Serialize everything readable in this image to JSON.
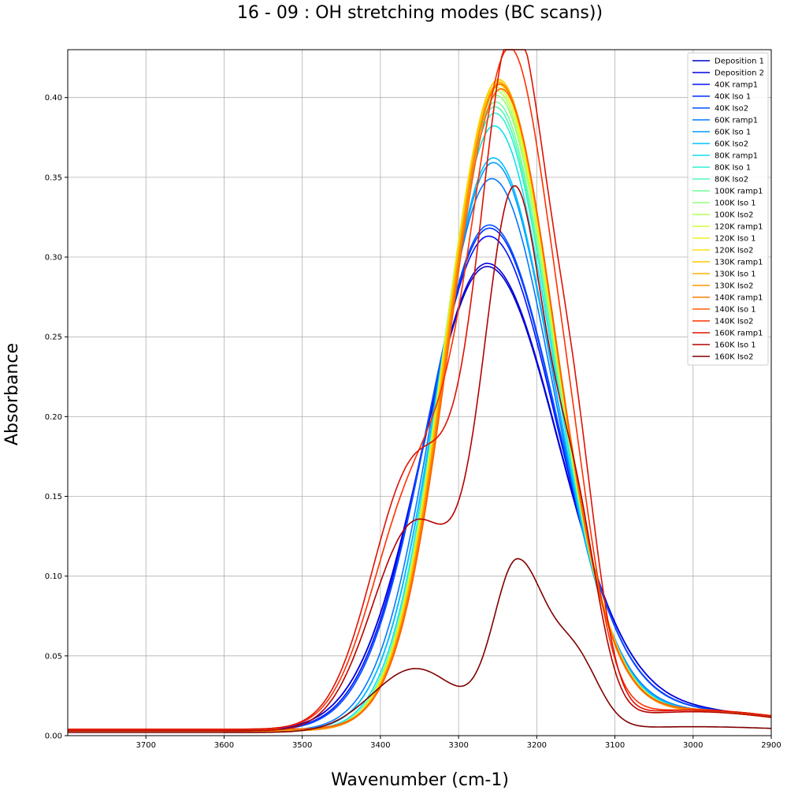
{
  "chart_data": {
    "type": "line",
    "title": "16 - 09 : OH stretching modes (BC scans))",
    "xlabel": "Wavenumber (cm-1)",
    "ylabel": "Absorbance",
    "xlim": [
      3800,
      2900
    ],
    "x_reversed": true,
    "ylim": [
      0.0,
      0.43
    ],
    "xticks": [
      3700,
      3600,
      3500,
      3400,
      3300,
      3200,
      3100,
      3000,
      2900
    ],
    "yticks": [
      "0.00",
      "0.05",
      "0.10",
      "0.15",
      "0.20",
      "0.25",
      "0.30",
      "0.35",
      "0.40"
    ],
    "grid": true,
    "legend_position": "top-right",
    "series": [
      {
        "name": "Deposition 1",
        "color": "#0000c8",
        "peak_x": 3264,
        "peak_y": 0.29,
        "sigma_hi": 82,
        "sigma_lo": 92,
        "shoulder_y": 0.0,
        "shoulder2_y": 0.0,
        "base_y": 0.003
      },
      {
        "name": "Deposition 2",
        "color": "#0000e0",
        "peak_x": 3264,
        "peak_y": 0.292,
        "sigma_hi": 82,
        "sigma_lo": 92,
        "shoulder_y": 0.0,
        "shoulder2_y": 0.0,
        "base_y": 0.003
      },
      {
        "name": "40K ramp1",
        "color": "#0010ff",
        "peak_x": 3262,
        "peak_y": 0.309,
        "sigma_hi": 80,
        "sigma_lo": 88,
        "shoulder_y": 0.0,
        "shoulder2_y": 0.0,
        "base_y": 0.003
      },
      {
        "name": "40K Iso 1",
        "color": "#0030ff",
        "peak_x": 3261,
        "peak_y": 0.314,
        "sigma_hi": 79,
        "sigma_lo": 87,
        "shoulder_y": 0.0,
        "shoulder2_y": 0.0,
        "base_y": 0.003
      },
      {
        "name": "40K Iso2",
        "color": "#0050ff",
        "peak_x": 3261,
        "peak_y": 0.316,
        "sigma_hi": 79,
        "sigma_lo": 87,
        "shoulder_y": 0.0,
        "shoulder2_y": 0.0,
        "base_y": 0.003
      },
      {
        "name": "60K ramp1",
        "color": "#0078ff",
        "peak_x": 3258,
        "peak_y": 0.345,
        "sigma_hi": 72,
        "sigma_lo": 80,
        "shoulder_y": 0.0,
        "shoulder2_y": 0.0,
        "base_y": 0.003
      },
      {
        "name": "60K Iso 1",
        "color": "#009cff",
        "peak_x": 3256,
        "peak_y": 0.355,
        "sigma_hi": 70,
        "sigma_lo": 78,
        "shoulder_y": 0.0,
        "shoulder2_y": 0.0,
        "base_y": 0.003
      },
      {
        "name": "60K Iso2",
        "color": "#00c0ff",
        "peak_x": 3256,
        "peak_y": 0.358,
        "sigma_hi": 70,
        "sigma_lo": 78,
        "shoulder_y": 0.0,
        "shoulder2_y": 0.0,
        "base_y": 0.003
      },
      {
        "name": "80K ramp1",
        "color": "#10e0f0",
        "peak_x": 3255,
        "peak_y": 0.378,
        "sigma_hi": 67,
        "sigma_lo": 76,
        "shoulder_y": 0.0,
        "shoulder2_y": 0.0,
        "base_y": 0.003
      },
      {
        "name": "80K Iso 1",
        "color": "#30f0d0",
        "peak_x": 3254,
        "peak_y": 0.386,
        "sigma_hi": 66,
        "sigma_lo": 75,
        "shoulder_y": 0.0,
        "shoulder2_y": 0.0,
        "base_y": 0.003
      },
      {
        "name": "80K Iso2",
        "color": "#50f8b8",
        "peak_x": 3254,
        "peak_y": 0.39,
        "sigma_hi": 66,
        "sigma_lo": 75,
        "shoulder_y": 0.0,
        "shoulder2_y": 0.0,
        "base_y": 0.003
      },
      {
        "name": "100K ramp1",
        "color": "#70ff98",
        "peak_x": 3253,
        "peak_y": 0.393,
        "sigma_hi": 66,
        "sigma_lo": 74,
        "shoulder_y": 0.0,
        "shoulder2_y": 0.0,
        "base_y": 0.003
      },
      {
        "name": "100K Iso 1",
        "color": "#90ff78",
        "peak_x": 3252,
        "peak_y": 0.397,
        "sigma_hi": 66,
        "sigma_lo": 74,
        "shoulder_y": 0.0,
        "shoulder2_y": 0.0,
        "base_y": 0.003
      },
      {
        "name": "100K Iso2",
        "color": "#b0ff58",
        "peak_x": 3252,
        "peak_y": 0.4,
        "sigma_hi": 66,
        "sigma_lo": 73,
        "shoulder_y": 0.0,
        "shoulder2_y": 0.0,
        "base_y": 0.003
      },
      {
        "name": "120K ramp1",
        "color": "#d0ff38",
        "peak_x": 3251,
        "peak_y": 0.402,
        "sigma_hi": 66,
        "sigma_lo": 73,
        "shoulder_y": 0.0,
        "shoulder2_y": 0.0,
        "base_y": 0.003
      },
      {
        "name": "120K Iso 1",
        "color": "#f0f020",
        "peak_x": 3250,
        "peak_y": 0.404,
        "sigma_hi": 66,
        "sigma_lo": 72,
        "shoulder_y": 0.0,
        "shoulder2_y": 0.0,
        "base_y": 0.003
      },
      {
        "name": "120K Iso2",
        "color": "#ffe010",
        "peak_x": 3250,
        "peak_y": 0.406,
        "sigma_hi": 66,
        "sigma_lo": 72,
        "shoulder_y": 0.0,
        "shoulder2_y": 0.0,
        "base_y": 0.003
      },
      {
        "name": "130K ramp1",
        "color": "#ffc800",
        "peak_x": 3249,
        "peak_y": 0.407,
        "sigma_hi": 66,
        "sigma_lo": 72,
        "shoulder_y": 0.0,
        "shoulder2_y": 0.0,
        "base_y": 0.003
      },
      {
        "name": "130K Iso 1",
        "color": "#ffb000",
        "peak_x": 3248,
        "peak_y": 0.405,
        "sigma_hi": 66,
        "sigma_lo": 71,
        "shoulder_y": 0.0,
        "shoulder2_y": 0.0,
        "base_y": 0.003
      },
      {
        "name": "130K Iso2",
        "color": "#ff9800",
        "peak_x": 3248,
        "peak_y": 0.404,
        "sigma_hi": 66,
        "sigma_lo": 71,
        "shoulder_y": 0.0,
        "shoulder2_y": 0.0,
        "base_y": 0.003
      },
      {
        "name": "140K ramp1",
        "color": "#ff8000",
        "peak_x": 3247,
        "peak_y": 0.403,
        "sigma_hi": 66,
        "sigma_lo": 70,
        "shoulder_y": 0.0,
        "shoulder2_y": 0.0,
        "base_y": 0.004
      },
      {
        "name": "140K Iso 1",
        "color": "#ff6000",
        "peak_x": 3246,
        "peak_y": 0.4,
        "sigma_hi": 66,
        "sigma_lo": 70,
        "shoulder_y": 0.0,
        "shoulder2_y": 0.0,
        "base_y": 0.004
      },
      {
        "name": "140K Iso2",
        "color": "#ff3000",
        "peak_x": 3232,
        "peak_y": 0.412,
        "sigma_hi": 52,
        "sigma_lo": 55,
        "shoulder_y": 0.145,
        "shoulder2_y": 0.05,
        "base_y": 0.004
      },
      {
        "name": "160K ramp1",
        "color": "#e01000",
        "peak_x": 3228,
        "peak_y": 0.426,
        "sigma_hi": 45,
        "sigma_lo": 45,
        "shoulder_y": 0.165,
        "shoulder2_y": 0.12,
        "base_y": 0.004
      },
      {
        "name": "160K Iso 1",
        "color": "#b40000",
        "peak_x": 3228,
        "peak_y": 0.327,
        "sigma_hi": 40,
        "sigma_lo": 40,
        "shoulder_y": 0.13,
        "shoulder2_y": 0.11,
        "base_y": 0.003
      },
      {
        "name": "160K Iso2",
        "color": "#800000",
        "peak_x": 3225,
        "peak_y": 0.104,
        "sigma_hi": 30,
        "sigma_lo": 36,
        "shoulder_y": 0.04,
        "shoulder2_y": 0.042,
        "base_y": 0.002
      }
    ]
  }
}
